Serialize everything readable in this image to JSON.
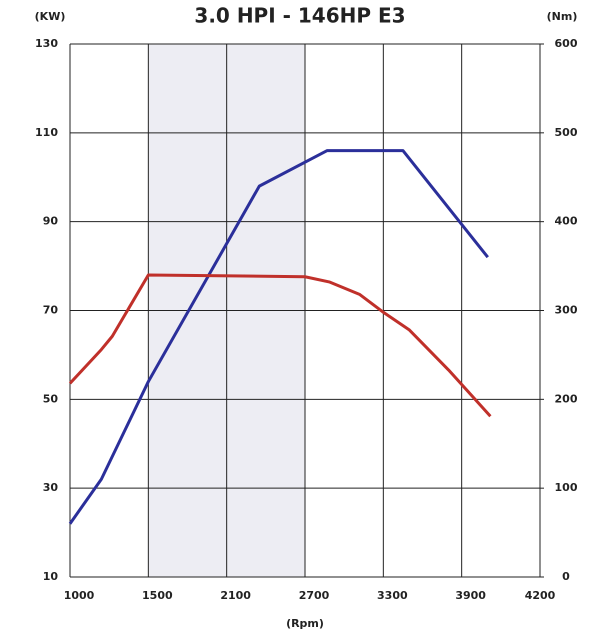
{
  "chart_data": {
    "type": "line",
    "title": "3.0 HPI - 146HP E3",
    "ylabel": "(KW)",
    "y2label": "(Nm)",
    "xlabel": "(Rpm)",
    "xlim": [
      1000,
      4200
    ],
    "xticks": [
      1000,
      1500,
      2100,
      2700,
      3300,
      3900,
      4200
    ],
    "ylim": [
      10,
      130
    ],
    "yticks": [
      10,
      30,
      50,
      70,
      90,
      110,
      130
    ],
    "y2lim": [
      0,
      600
    ],
    "y2ticks": [
      0,
      100,
      200,
      300,
      400,
      500,
      600
    ],
    "grid": true,
    "highlight_range": [
      1500,
      2700
    ],
    "highlight_color": "#ededf3",
    "series": [
      {
        "color": "#2b2f9a",
        "axis": "y",
        "x": [
          1000,
          1200,
          1500,
          2350,
          2870,
          3450,
          4000
        ],
        "values": [
          22,
          32,
          54,
          98,
          106,
          106,
          82
        ]
      },
      {
        "color": "#c0302a",
        "axis": "y2",
        "x": [
          1000,
          1200,
          1270,
          1500,
          2700,
          2890,
          3120,
          3300,
          3500,
          3800,
          4010
        ],
        "values": [
          218,
          256,
          271,
          340,
          338,
          332,
          318,
          298,
          278,
          233,
          181
        ]
      }
    ]
  }
}
